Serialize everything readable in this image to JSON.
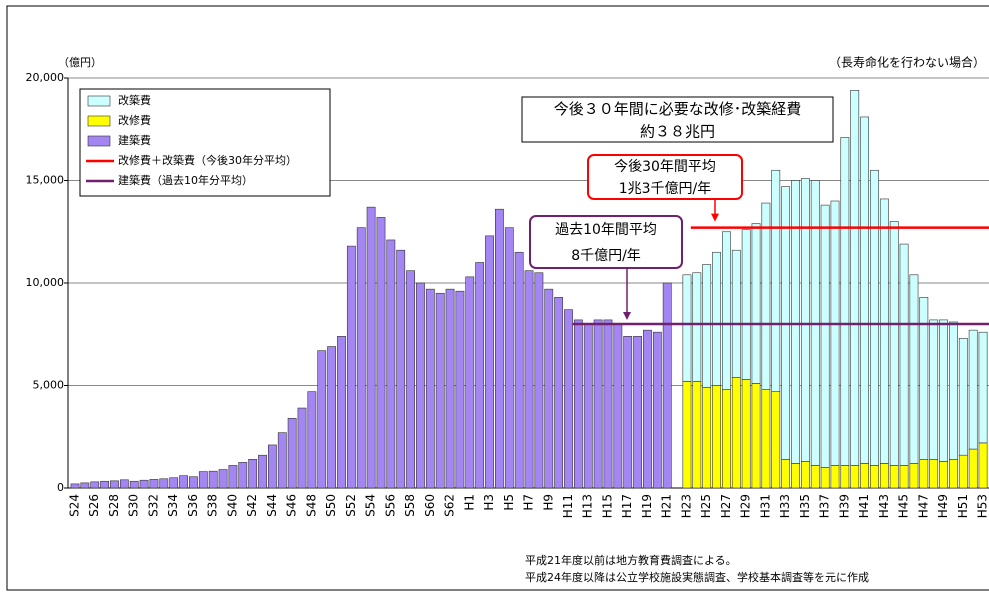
{
  "chart_data": {
    "type": "bar",
    "unit_label": "（億円）",
    "subtitle": "（長寿命化を行わない場合）",
    "categories": [
      "S24",
      null,
      "S26",
      null,
      "S28",
      null,
      "S30",
      null,
      "S32",
      null,
      "S34",
      null,
      "S36",
      null,
      "S38",
      null,
      "S40",
      null,
      "S42",
      null,
      "S44",
      null,
      "S46",
      null,
      "S48",
      null,
      "S50",
      null,
      "S52",
      null,
      "S54",
      null,
      "S56",
      null,
      "S58",
      null,
      "S60",
      null,
      "S62",
      null,
      "H1",
      null,
      "H3",
      null,
      "H5",
      null,
      "H7",
      null,
      "H9",
      null,
      "H11",
      null,
      "H13",
      null,
      "H15",
      null,
      "H17",
      null,
      "H19",
      null,
      "H21",
      null,
      "H23",
      null,
      "H25",
      null,
      "H27",
      null,
      "H29",
      null,
      "H31",
      null,
      "H33",
      null,
      "H35",
      null,
      "H37",
      null,
      "H39",
      null,
      "H41",
      null,
      "H43",
      null,
      "H45",
      null,
      "H47",
      null,
      "H49",
      null,
      "H51",
      null,
      "H53"
    ],
    "series": [
      {
        "name": "改築費",
        "color": "#ccffff",
        "stroke": "#333333",
        "values": [
          null,
          null,
          null,
          null,
          null,
          null,
          null,
          null,
          null,
          null,
          null,
          null,
          null,
          null,
          null,
          null,
          null,
          null,
          null,
          null,
          null,
          null,
          null,
          null,
          null,
          null,
          null,
          null,
          null,
          null,
          null,
          null,
          null,
          null,
          null,
          null,
          null,
          null,
          null,
          null,
          null,
          null,
          null,
          null,
          null,
          null,
          null,
          null,
          null,
          null,
          null,
          null,
          null,
          null,
          null,
          null,
          null,
          null,
          null,
          null,
          null,
          null,
          5200,
          5300,
          6000,
          6500,
          7700,
          6200,
          7300,
          7800,
          9100,
          10800,
          13300,
          13800,
          13800,
          13900,
          12800,
          12900,
          16000,
          18300,
          16900,
          14400,
          12900,
          11900,
          10800,
          9200,
          7900,
          6800,
          6900,
          6700,
          5700,
          5800,
          5400
        ]
      },
      {
        "name": "改修費",
        "color": "#ffff00",
        "stroke": "#333333",
        "values": [
          null,
          null,
          null,
          null,
          null,
          null,
          null,
          null,
          null,
          null,
          null,
          null,
          null,
          null,
          null,
          null,
          null,
          null,
          null,
          null,
          null,
          null,
          null,
          null,
          null,
          null,
          null,
          null,
          null,
          null,
          null,
          null,
          null,
          null,
          null,
          null,
          null,
          null,
          null,
          null,
          null,
          null,
          null,
          null,
          null,
          null,
          null,
          null,
          null,
          null,
          null,
          null,
          null,
          null,
          null,
          null,
          null,
          null,
          null,
          null,
          null,
          null,
          5200,
          5200,
          4900,
          5000,
          4800,
          5400,
          5300,
          5100,
          4800,
          4700,
          1400,
          1200,
          1300,
          1100,
          1000,
          1100,
          1100,
          1100,
          1200,
          1100,
          1200,
          1100,
          1100,
          1200,
          1400,
          1400,
          1300,
          1400,
          1600,
          1900,
          2200
        ]
      },
      {
        "name": "建築費",
        "color": "#a386f2",
        "stroke": "#333333",
        "values": [
          200,
          250,
          300,
          330,
          350,
          400,
          330,
          380,
          420,
          450,
          500,
          600,
          550,
          800,
          820,
          900,
          1100,
          1250,
          1400,
          1600,
          2100,
          2700,
          3400,
          3900,
          4700,
          6700,
          6900,
          7400,
          11800,
          12700,
          13700,
          13200,
          12100,
          11600,
          10600,
          10000,
          9700,
          9500,
          9700,
          9600,
          10300,
          11000,
          12300,
          13600,
          12700,
          11500,
          10600,
          10500,
          9700,
          9300,
          8700,
          8200,
          8000,
          8200,
          8200,
          8000,
          7400,
          7400,
          7700,
          7600,
          10000,
          null,
          null,
          null,
          null,
          null,
          null,
          null,
          null,
          null,
          null,
          null,
          null,
          null,
          null,
          null,
          null,
          null,
          null,
          null,
          null,
          null,
          null,
          null,
          null,
          null,
          null,
          null,
          null,
          null,
          null,
          null,
          null
        ]
      }
    ],
    "reference_lines": [
      {
        "name": "改修費＋改築費（今後30年分平均）",
        "value": 12700,
        "color": "#ff0000"
      },
      {
        "name": "建築費（過去10年分平均）",
        "value": 8000,
        "color": "#70206f"
      }
    ],
    "annotations": [
      {
        "lines": [
          "今後３０年間に必要な改修･改築経費",
          "約３８兆円"
        ]
      },
      {
        "lines": [
          "今後30年間平均",
          "1兆3千億円/年"
        ]
      },
      {
        "lines": [
          "過去10年間平均",
          "8千億円/年"
        ]
      }
    ],
    "notes": [
      "平成21年度以前は地方教育費調査による。",
      "平成24年度以降は公立学校施設実態調査、学校基本調査等を元に作成"
    ],
    "ylim": [
      0,
      20000
    ],
    "yticks": [
      0,
      {
        "value": 5000,
        "label": "5,000"
      },
      {
        "value": 10000,
        "label": "10,000"
      },
      {
        "value": 15000,
        "label": "15,000"
      },
      {
        "value": 20000,
        "label": "20,000"
      }
    ],
    "grid": true
  }
}
